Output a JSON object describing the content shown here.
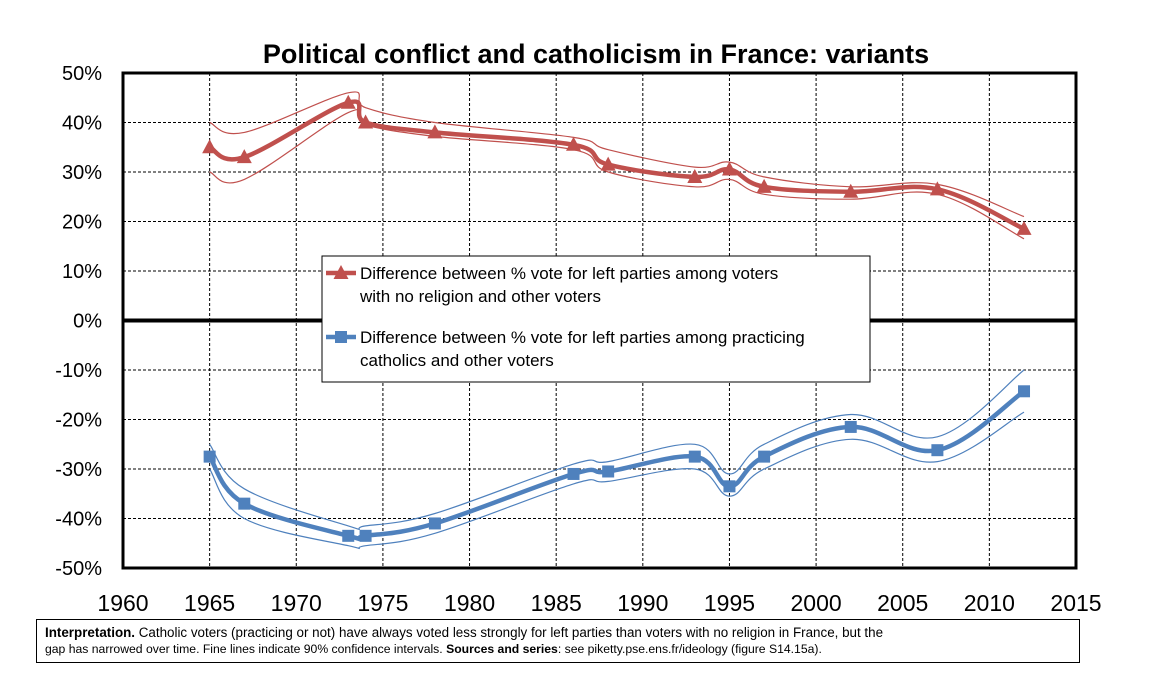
{
  "chart_data": {
    "type": "line",
    "title": "Political conflict and catholicism in France: variants",
    "xlim": [
      1960,
      2015
    ],
    "ylim": [
      -0.5,
      0.5
    ],
    "x_ticks": [
      "1960",
      "1965",
      "1970",
      "1975",
      "1980",
      "1985",
      "1990",
      "1995",
      "2000",
      "2005",
      "2010",
      "2015"
    ],
    "y_ticks": [
      "50%",
      "40%",
      "30%",
      "20%",
      "10%",
      "0%",
      "-10%",
      "-20%",
      "-30%",
      "-40%",
      "-50%"
    ],
    "grid": true,
    "legend_position": "center",
    "series": [
      {
        "name": "Difference between % vote for left parties among voters with no religion and other voters",
        "name_lines": [
          "Difference between % vote for left parties among voters",
          "with no religion and other voters"
        ],
        "color": "#c0504d",
        "marker": "triangle",
        "x": [
          1965,
          1967,
          1973,
          1974,
          1978,
          1986,
          1988,
          1993,
          1995,
          1997,
          2002,
          2007,
          2012
        ],
        "y": [
          0.35,
          0.33,
          0.44,
          0.4,
          0.38,
          0.355,
          0.315,
          0.29,
          0.305,
          0.27,
          0.26,
          0.265,
          0.185
        ],
        "ci_low": [
          0.3,
          0.285,
          0.42,
          0.395,
          0.372,
          0.345,
          0.3,
          0.27,
          0.285,
          0.255,
          0.245,
          0.255,
          0.165
        ],
        "ci_high": [
          0.4,
          0.38,
          0.46,
          0.43,
          0.4,
          0.37,
          0.345,
          0.31,
          0.32,
          0.29,
          0.27,
          0.275,
          0.21
        ]
      },
      {
        "name": "Difference between % vote for left parties among practicing catholics and other voters",
        "name_lines": [
          "Difference between % vote for left parties among practicing",
          "catholics and other voters"
        ],
        "color": "#4f81bd",
        "marker": "square",
        "x": [
          1965,
          1967,
          1973,
          1974,
          1978,
          1986,
          1988,
          1993,
          1995,
          1997,
          2002,
          2007,
          2012
        ],
        "y": [
          -0.275,
          -0.37,
          -0.435,
          -0.435,
          -0.41,
          -0.31,
          -0.305,
          -0.275,
          -0.335,
          -0.275,
          -0.215,
          -0.262,
          -0.143
        ],
        "ci_low": [
          -0.3,
          -0.4,
          -0.455,
          -0.455,
          -0.43,
          -0.33,
          -0.325,
          -0.3,
          -0.355,
          -0.3,
          -0.24,
          -0.285,
          -0.185
        ],
        "ci_high": [
          -0.25,
          -0.34,
          -0.415,
          -0.415,
          -0.39,
          -0.29,
          -0.285,
          -0.25,
          -0.31,
          -0.25,
          -0.19,
          -0.235,
          -0.1
        ]
      }
    ]
  },
  "caption": {
    "lead": "Interpretation.",
    "line1": " Catholic voters (practicing or not) have always voted less strongly for left parties than voters with no religion in France, but the",
    "line2a": "gap has narrowed over time. ",
    "line2b": "Fine lines indicate 90% confidence intervals. ",
    "sources_label": "Sources and series",
    "line2c": ": see piketty.pse.ens.fr/ideology (figure S14.15a)."
  }
}
